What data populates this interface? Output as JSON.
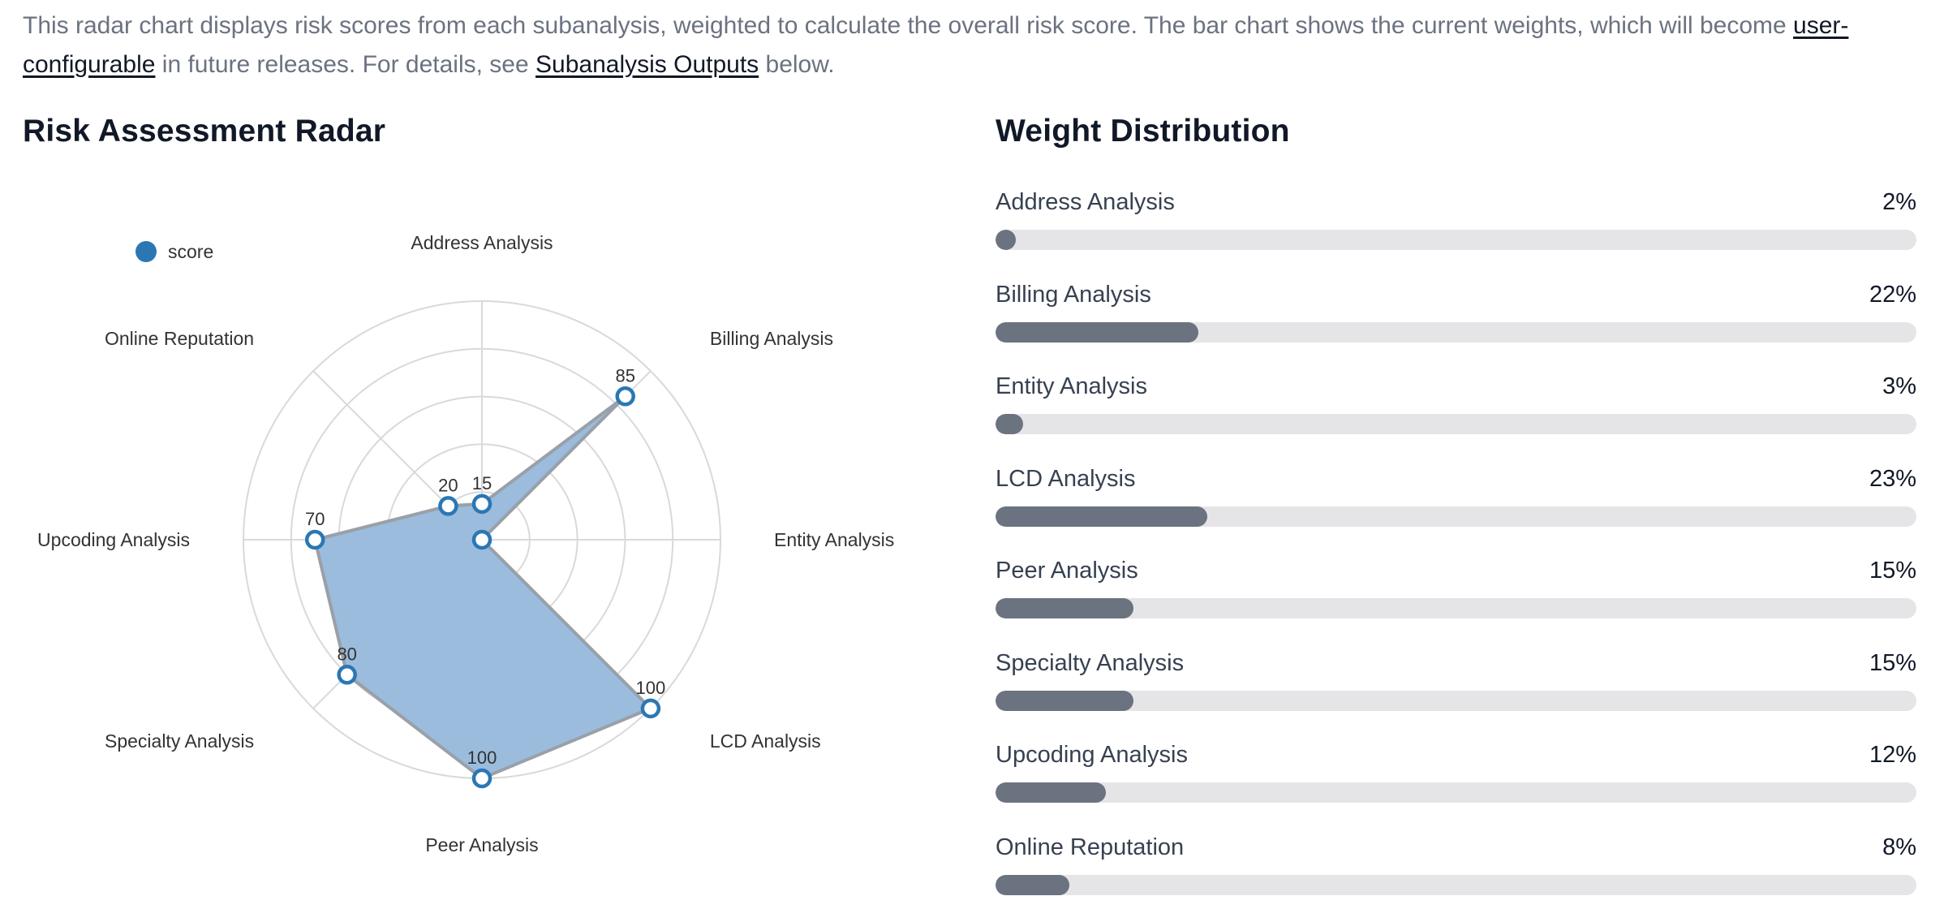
{
  "intro": {
    "text_1": "This radar chart displays risk scores from each subanalysis, weighted to calculate the overall risk score. The bar chart shows the current weights, which will become ",
    "link_1": "user-configurable",
    "text_2": " in future releases. For details, see ",
    "link_2": "Subanalysis Outputs",
    "text_3": " below."
  },
  "radar_title": "Risk Assessment Radar",
  "weights_title": "Weight Distribution",
  "chart_data": [
    {
      "type": "radar",
      "title": "Risk Assessment Radar",
      "legend": {
        "entries": [
          "score"
        ],
        "placement": "top-left"
      },
      "categories": [
        "Address Analysis",
        "Billing Analysis",
        "Entity Analysis",
        "LCD Analysis",
        "Peer Analysis",
        "Specialty Analysis",
        "Upcoding Analysis",
        "Online Reputation"
      ],
      "series": [
        {
          "name": "score",
          "values": [
            15,
            85,
            0,
            100,
            100,
            80,
            70,
            20
          ],
          "color": "#2a77b4",
          "fill": "#9bbcdc"
        }
      ],
      "value_labels": [
        "15",
        "85",
        "",
        "100",
        "100",
        "80",
        "70",
        "20"
      ],
      "range": [
        0,
        100
      ],
      "grid": true
    },
    {
      "type": "bar",
      "orientation": "horizontal",
      "title": "Weight Distribution",
      "categories": [
        "Address Analysis",
        "Billing Analysis",
        "Entity Analysis",
        "LCD Analysis",
        "Peer Analysis",
        "Specialty Analysis",
        "Upcoding Analysis",
        "Online Reputation"
      ],
      "values": [
        2,
        22,
        3,
        23,
        15,
        15,
        12,
        8
      ],
      "value_labels": [
        "2%",
        "22%",
        "3%",
        "23%",
        "15%",
        "15%",
        "12%",
        "8%"
      ],
      "range": [
        0,
        100
      ],
      "bar_color": "#6b7280",
      "track_color": "#e5e5e7"
    }
  ]
}
